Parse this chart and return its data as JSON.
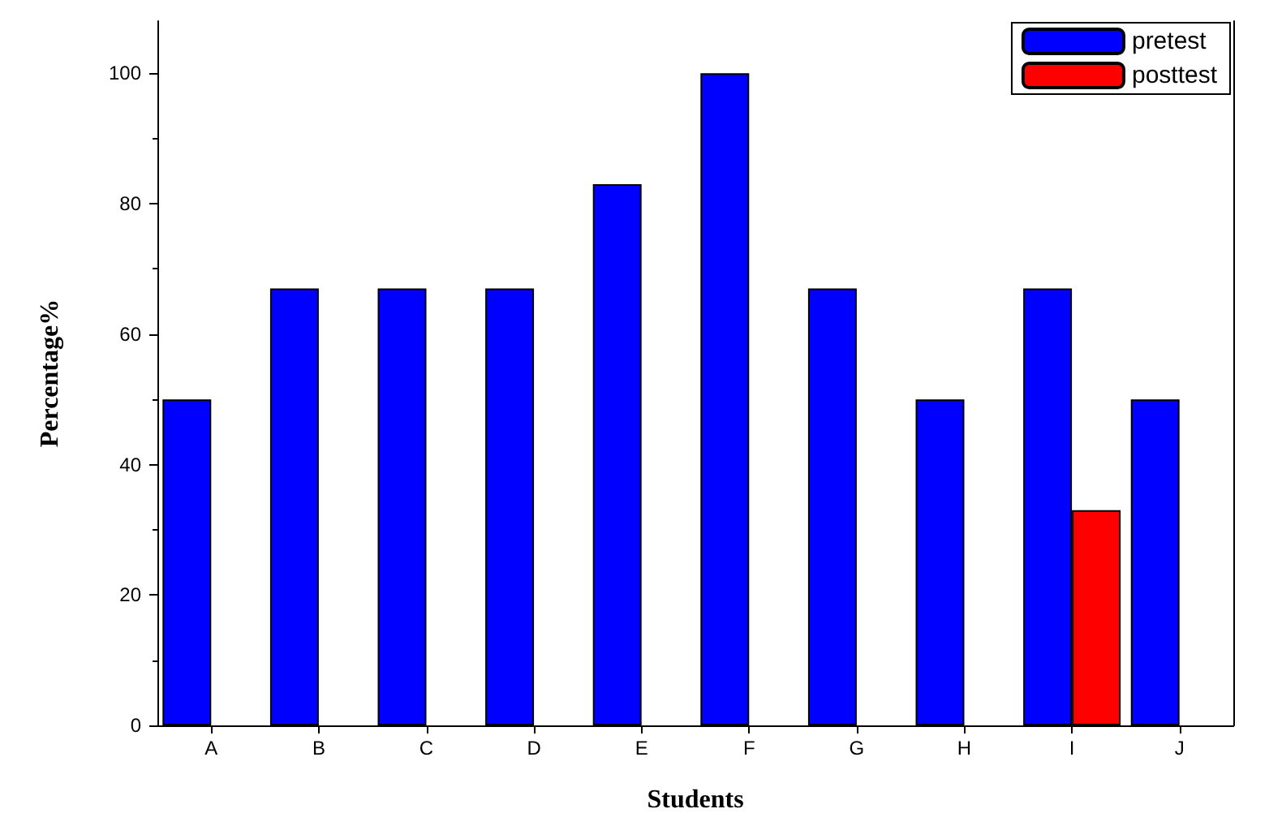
{
  "chart_data": {
    "type": "bar",
    "xlabel": "Students",
    "ylabel": "Percentage%",
    "categories": [
      "A",
      "B",
      "C",
      "D",
      "E",
      "F",
      "G",
      "H",
      "I",
      "J"
    ],
    "series": [
      {
        "name": "pretest",
        "color": "#0000ff",
        "values": [
          50,
          67,
          67,
          67,
          83,
          100,
          67,
          50,
          67,
          50
        ]
      },
      {
        "name": "posttest",
        "color": "#ff0000",
        "values": [
          null,
          null,
          null,
          null,
          null,
          null,
          null,
          null,
          33,
          null
        ]
      }
    ],
    "ylim": [
      0,
      108
    ],
    "yticks": [
      0,
      20,
      40,
      60,
      80,
      100
    ],
    "grid": false,
    "legend": "top right"
  }
}
